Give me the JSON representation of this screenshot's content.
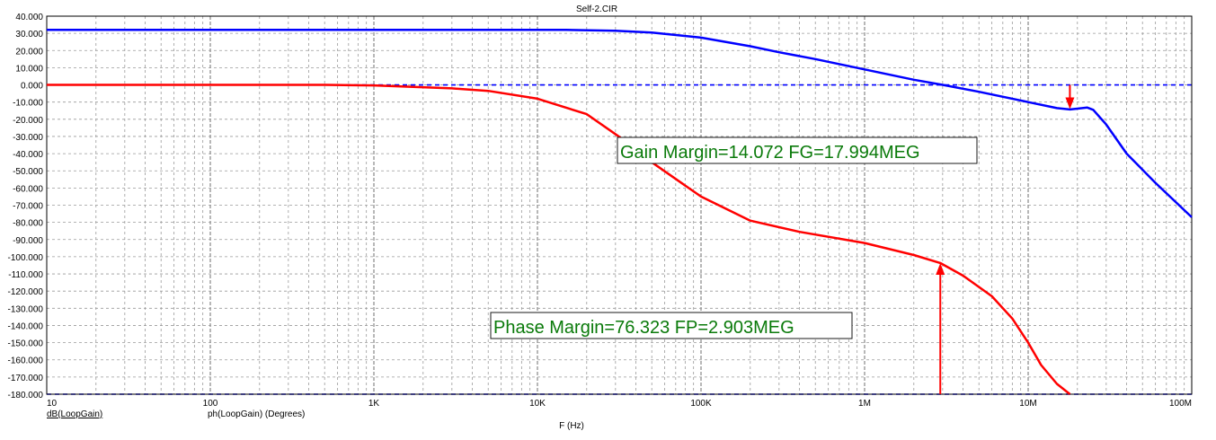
{
  "chart_data": {
    "type": "line",
    "title": "Self-2.CIR",
    "xlabel": "F (Hz)",
    "x_scale": "log",
    "xlim": [
      10,
      100000000
    ],
    "ylim": [
      -180,
      40
    ],
    "grid": true,
    "x_tick_labels": [
      {
        "v": 10,
        "t": "10"
      },
      {
        "v": 100,
        "t": "100"
      },
      {
        "v": 1000,
        "t": "1K"
      },
      {
        "v": 10000,
        "t": "10K"
      },
      {
        "v": 100000,
        "t": "100K"
      },
      {
        "v": 1000000,
        "t": "1M"
      },
      {
        "v": 10000000,
        "t": "10M"
      },
      {
        "v": 100000000,
        "t": "100M"
      }
    ],
    "y_tick_labels": [
      "40.000",
      "30.000",
      "20.000",
      "10.000",
      "0.000",
      "-10.000",
      "-20.000",
      "-30.000",
      "-40.000",
      "-50.000",
      "-60.000",
      "-70.000",
      "-80.000",
      "-90.000",
      "-100.000",
      "-110.000",
      "-120.000",
      "-130.000",
      "-140.000",
      "-150.000",
      "-160.000",
      "-170.000",
      "-180.000"
    ],
    "y_tick_values": [
      40,
      30,
      20,
      10,
      0,
      -10,
      -20,
      -30,
      -40,
      -50,
      -60,
      -70,
      -80,
      -90,
      -100,
      -110,
      -120,
      -130,
      -140,
      -150,
      -160,
      -170,
      -180
    ],
    "reference_lines": [
      0,
      -180
    ],
    "series": [
      {
        "name": "dB(LoopGain)",
        "color": "#0000ff",
        "x": [
          10,
          1000,
          10000,
          15000,
          30000,
          50000,
          100000,
          200000,
          300000,
          500000,
          1000000,
          2000000,
          3000000,
          5000000,
          10000000,
          15000000,
          18000000,
          20000000,
          23000000,
          25000000,
          30000000,
          40000000,
          60000000,
          100000000
        ],
        "values": [
          32,
          32,
          32,
          32,
          31.5,
          30.5,
          27.5,
          22.5,
          19,
          15,
          9,
          3,
          0,
          -4,
          -10,
          -13.5,
          -14.3,
          -13.8,
          -13.2,
          -14.5,
          -23,
          -40,
          -57,
          -77
        ]
      },
      {
        "name": "ph(LoopGain) (Degrees)",
        "color": "#ff0000",
        "x": [
          10,
          500,
          1000,
          3000,
          5000,
          10000,
          20000,
          40000,
          50000,
          100000,
          200000,
          400000,
          1000000,
          2000000,
          2903000,
          4000000,
          6000000,
          8000000,
          10000000,
          12000000,
          15000000,
          18000000
        ],
        "values": [
          0,
          0,
          -0.3,
          -2,
          -3.5,
          -8,
          -17,
          -37,
          -45,
          -65,
          -79,
          -85.5,
          -92,
          -99,
          -103.677,
          -111,
          -123,
          -136,
          -150,
          -163,
          -174,
          -180
        ]
      }
    ],
    "annotations": [
      {
        "text": "Gain Margin=14.072 FG=17.994MEG",
        "arrow_x": 17994000,
        "arrow_from": 0,
        "arrow_to": -14.072
      },
      {
        "text": "Phase Margin=76.323 FP=2.903MEG",
        "arrow_x": 2903000,
        "arrow_from": -180,
        "arrow_to": -103.677
      }
    ]
  }
}
